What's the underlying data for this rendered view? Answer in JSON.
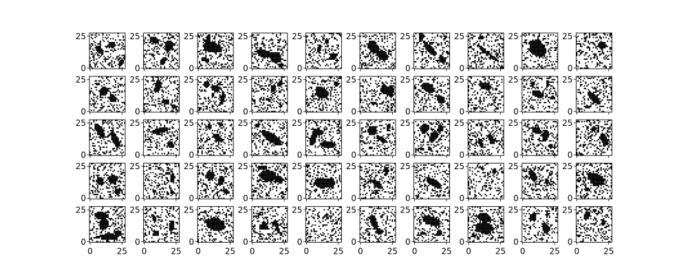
{
  "chart_data": {
    "type": "heatmap",
    "title": "",
    "xlabel": "",
    "ylabel": "",
    "layout": {
      "rows": 5,
      "cols": 10
    },
    "image_size": [
      28,
      28
    ],
    "colormap": [
      "#ffffff",
      "#000000"
    ],
    "xticks": [
      "0",
      "25"
    ],
    "yticks": [
      "0",
      "25"
    ],
    "panels": [
      {
        "blobs": [
          [
            0.28,
            0.47,
            0.16,
            0.09,
            0.8
          ],
          [
            0.63,
            0.33,
            0.11,
            0.1,
            0.1
          ],
          [
            0.88,
            0.86,
            0.06,
            0.12,
            0.6
          ]
        ],
        "seed": 11
      },
      {
        "blobs": [
          [
            0.3,
            0.2,
            0.15,
            0.1,
            0.2
          ],
          [
            0.7,
            0.35,
            0.12,
            0.18,
            0.3
          ],
          [
            0.55,
            0.78,
            0.08,
            0.13,
            0.6
          ]
        ],
        "seed": 12
      },
      {
        "blobs": [
          [
            0.43,
            0.41,
            0.3,
            0.16,
            0.2
          ],
          [
            0.22,
            0.75,
            0.12,
            0.06,
            0.1
          ],
          [
            0.3,
            0.17,
            0.07,
            0.14,
            0.2
          ]
        ],
        "seed": 13
      },
      {
        "blobs": [
          [
            0.32,
            0.57,
            0.22,
            0.12,
            0.5
          ],
          [
            0.66,
            0.68,
            0.2,
            0.16,
            0.7
          ],
          [
            0.82,
            0.9,
            0.1,
            0.06,
            0.2
          ]
        ],
        "seed": 14
      },
      {
        "blobs": [
          [
            0.38,
            0.44,
            0.06,
            0.14,
            0.3
          ],
          [
            0.77,
            0.64,
            0.11,
            0.1,
            0.8
          ],
          [
            0.58,
            0.22,
            0.05,
            0.07,
            0.3
          ]
        ],
        "seed": 15
      },
      {
        "blobs": [
          [
            0.38,
            0.4,
            0.16,
            0.22,
            -0.4
          ],
          [
            0.62,
            0.62,
            0.2,
            0.14,
            0.6
          ]
        ],
        "seed": 16
      },
      {
        "blobs": [
          [
            0.2,
            0.1,
            0.08,
            0.12,
            0.3
          ],
          [
            0.45,
            0.45,
            0.26,
            0.1,
            0.8
          ],
          [
            0.8,
            0.75,
            0.14,
            0.08,
            0.7
          ]
        ],
        "seed": 17
      },
      {
        "blobs": [
          [
            0.44,
            0.48,
            0.24,
            0.06,
            0.7
          ],
          [
            0.72,
            0.7,
            0.14,
            0.05,
            0.6
          ],
          [
            0.36,
            0.14,
            0.08,
            0.06,
            0.4
          ]
        ],
        "seed": 18
      },
      {
        "blobs": [
          [
            0.4,
            0.42,
            0.2,
            0.27,
            -0.3
          ],
          [
            0.56,
            0.5,
            0.14,
            0.18,
            0.2
          ]
        ],
        "seed": 19
      },
      {
        "blobs": [
          [
            0.72,
            0.35,
            0.13,
            0.1,
            0.2
          ],
          [
            0.32,
            0.42,
            0.03,
            0.03,
            0
          ],
          [
            0.45,
            0.52,
            0.03,
            0.03,
            0
          ]
        ],
        "seed": 20
      },
      {
        "blobs": [
          [
            0.4,
            0.42,
            0.12,
            0.15,
            0.3
          ],
          [
            0.65,
            0.62,
            0.14,
            0.1,
            0.7
          ],
          [
            0.25,
            0.22,
            0.06,
            0.05,
            0.3
          ]
        ],
        "seed": 21
      },
      {
        "blobs": [
          [
            0.4,
            0.28,
            0.1,
            0.2,
            0.4
          ],
          [
            0.62,
            0.72,
            0.12,
            0.07,
            0.2
          ],
          [
            0.85,
            0.85,
            0.08,
            0.06,
            0.2
          ]
        ],
        "seed": 22
      },
      {
        "blobs": [
          [
            0.25,
            0.23,
            0.09,
            0.1,
            0.2
          ],
          [
            0.5,
            0.33,
            0.14,
            0.1,
            0.4
          ],
          [
            0.7,
            0.6,
            0.07,
            0.2,
            0.2
          ]
        ],
        "seed": 23
      },
      {
        "blobs": [
          [
            0.6,
            0.34,
            0.08,
            0.12,
            0.4
          ],
          [
            0.8,
            0.2,
            0.05,
            0.1,
            0
          ],
          [
            0.45,
            0.65,
            0.07,
            0.05,
            0.3
          ]
        ],
        "seed": 24
      },
      {
        "blobs": [
          [
            0.45,
            0.45,
            0.22,
            0.15,
            0.7
          ],
          [
            0.85,
            0.2,
            0.07,
            0.08,
            0.2
          ]
        ],
        "seed": 25
      },
      {
        "blobs": [
          [
            0.72,
            0.38,
            0.16,
            0.14,
            0.5
          ],
          [
            0.88,
            0.42,
            0.08,
            0.2,
            0
          ],
          [
            0.4,
            0.75,
            0.1,
            0.05,
            0.2
          ]
        ],
        "seed": 26
      },
      {
        "blobs": [
          [
            0.4,
            0.32,
            0.22,
            0.13,
            0.6
          ],
          [
            0.75,
            0.65,
            0.14,
            0.1,
            0.7
          ]
        ],
        "seed": 27
      },
      {
        "blobs": [
          [
            0.5,
            0.28,
            0.2,
            0.1,
            0.3
          ],
          [
            0.2,
            0.9,
            0.06,
            0.06,
            0.2
          ]
        ],
        "seed": 28
      },
      {
        "blobs": [
          [
            0.45,
            0.5,
            0.18,
            0.1,
            0.5
          ],
          [
            0.3,
            0.2,
            0.06,
            0.08,
            0.2
          ],
          [
            0.72,
            0.22,
            0.05,
            0.07,
            0.2
          ],
          [
            0.85,
            0.6,
            0.06,
            0.07,
            0.2
          ]
        ],
        "seed": 29
      },
      {
        "blobs": [
          [
            0.5,
            0.6,
            0.26,
            0.1,
            0.8
          ],
          [
            0.3,
            0.85,
            0.08,
            0.05,
            0.2
          ]
        ],
        "seed": 30
      },
      {
        "blobs": [
          [
            0.28,
            0.3,
            0.1,
            0.26,
            -0.5
          ],
          [
            0.72,
            0.55,
            0.1,
            0.3,
            -0.4
          ]
        ],
        "seed": 31
      },
      {
        "blobs": [
          [
            0.45,
            0.3,
            0.26,
            0.08,
            -0.2
          ],
          [
            0.75,
            0.7,
            0.12,
            0.08,
            0.7
          ]
        ],
        "seed": 32
      },
      {
        "blobs": [
          [
            0.55,
            0.5,
            0.2,
            0.08,
            0.7
          ],
          [
            0.32,
            0.2,
            0.06,
            0.06,
            0.2
          ],
          [
            0.65,
            0.12,
            0.04,
            0.05,
            0
          ]
        ],
        "seed": 33
      },
      {
        "blobs": [
          [
            0.55,
            0.5,
            0.36,
            0.13,
            0.6
          ],
          [
            0.15,
            0.15,
            0.08,
            0.06,
            0.3
          ]
        ],
        "seed": 34
      },
      {
        "blobs": [
          [
            0.35,
            0.35,
            0.18,
            0.1,
            0.1
          ],
          [
            0.62,
            0.7,
            0.24,
            0.1,
            0.1
          ],
          [
            0.2,
            0.55,
            0.1,
            0.2,
            0.3
          ]
        ],
        "seed": 35
      },
      {
        "blobs": [
          [
            0.35,
            0.3,
            0.14,
            0.15,
            0.3
          ],
          [
            0.62,
            0.55,
            0.18,
            0.08,
            0.5
          ],
          [
            0.8,
            0.2,
            0.06,
            0.1,
            0.2
          ],
          [
            0.3,
            0.78,
            0.06,
            0.05,
            0
          ]
        ],
        "seed": 36
      },
      {
        "blobs": [
          [
            0.3,
            0.25,
            0.12,
            0.16,
            0.3
          ],
          [
            0.55,
            0.48,
            0.12,
            0.2,
            0.5
          ],
          [
            0.75,
            0.25,
            0.1,
            0.1,
            0.2
          ],
          [
            0.45,
            0.82,
            0.05,
            0.06,
            0
          ]
        ],
        "seed": 37
      },
      {
        "blobs": [
          [
            0.35,
            0.65,
            0.06,
            0.16,
            -0.4
          ],
          [
            0.65,
            0.55,
            0.08,
            0.18,
            -0.4
          ],
          [
            0.25,
            0.15,
            0.04,
            0.04,
            0
          ]
        ],
        "seed": 38
      },
      {
        "blobs": [
          [
            0.4,
            0.3,
            0.16,
            0.1,
            0.5
          ],
          [
            0.65,
            0.45,
            0.1,
            0.18,
            0.1
          ],
          [
            0.8,
            0.75,
            0.05,
            0.06,
            0
          ]
        ],
        "seed": 39
      },
      {
        "blobs": [
          [
            0.5,
            0.25,
            0.08,
            0.07,
            0
          ],
          [
            0.78,
            0.55,
            0.1,
            0.22,
            -0.3
          ],
          [
            0.12,
            0.95,
            0.05,
            0.04,
            0
          ]
        ],
        "seed": 40
      },
      {
        "blobs": [
          [
            0.3,
            0.5,
            0.14,
            0.1,
            0.7
          ],
          [
            0.65,
            0.45,
            0.16,
            0.13,
            0
          ],
          [
            0.8,
            0.8,
            0.08,
            0.1,
            0.3
          ]
        ],
        "seed": 41
      },
      {
        "blobs": [
          [
            0.3,
            0.8,
            0.06,
            0.05,
            0
          ],
          [
            0.8,
            0.4,
            0.05,
            0.18,
            0
          ],
          [
            0.8,
            0.82,
            0.06,
            0.06,
            0
          ],
          [
            0.18,
            0.15,
            0.04,
            0.04,
            0
          ]
        ],
        "seed": 42
      },
      {
        "blobs": [
          [
            0.35,
            0.35,
            0.14,
            0.14,
            0.2
          ],
          [
            0.65,
            0.5,
            0.1,
            0.16,
            0.4
          ],
          [
            0.8,
            0.8,
            0.1,
            0.07,
            0.3
          ]
        ],
        "seed": 43
      },
      {
        "blobs": [
          [
            0.45,
            0.35,
            0.24,
            0.18,
            0.1
          ],
          [
            0.75,
            0.45,
            0.14,
            0.12,
            0.2
          ],
          [
            0.3,
            0.12,
            0.16,
            0.06,
            0
          ]
        ],
        "seed": 44
      },
      {
        "blobs": [
          [
            0.45,
            0.55,
            0.24,
            0.16,
            0
          ],
          [
            0.7,
            0.55,
            0.13,
            0.16,
            0.2
          ]
        ],
        "seed": 45
      },
      {
        "blobs": [
          [
            0.5,
            0.6,
            0.2,
            0.09,
            0.7
          ],
          [
            0.75,
            0.2,
            0.06,
            0.09,
            0
          ],
          [
            0.3,
            0.5,
            0.06,
            0.06,
            0
          ]
        ],
        "seed": 46
      },
      {
        "blobs": [
          [
            0.55,
            0.55,
            0.28,
            0.11,
            0.6
          ],
          [
            0.1,
            0.92,
            0.06,
            0.05,
            0
          ]
        ],
        "seed": 47
      },
      {
        "blobs": [
          [
            0.4,
            0.15,
            0.04,
            0.05,
            0
          ],
          [
            0.75,
            0.22,
            0.06,
            0.08,
            0
          ],
          [
            0.5,
            0.55,
            0.03,
            0.03,
            0
          ]
        ],
        "seed": 48
      },
      {
        "blobs": [
          [
            0.3,
            0.35,
            0.1,
            0.2,
            -0.5
          ],
          [
            0.68,
            0.5,
            0.06,
            0.09,
            0
          ]
        ],
        "seed": 49
      },
      {
        "blobs": [
          [
            0.55,
            0.45,
            0.28,
            0.18,
            0.6
          ],
          [
            0.3,
            0.72,
            0.08,
            0.07,
            0.2
          ]
        ],
        "seed": 50
      },
      {
        "blobs": [
          [
            0.35,
            0.25,
            0.2,
            0.12,
            0.2
          ],
          [
            0.4,
            0.5,
            0.14,
            0.18,
            0.3
          ],
          [
            0.55,
            0.85,
            0.3,
            0.1,
            0
          ],
          [
            0.8,
            0.75,
            0.12,
            0.1,
            0.3
          ]
        ],
        "seed": 51
      },
      {
        "blobs": [
          [
            0.3,
            0.35,
            0.06,
            0.12,
            -0.3
          ],
          [
            0.35,
            0.75,
            0.1,
            0.09,
            0.3
          ],
          [
            0.78,
            0.55,
            0.08,
            0.18,
            0.2
          ]
        ],
        "seed": 52
      },
      {
        "blobs": [
          [
            0.5,
            0.5,
            0.32,
            0.2,
            0.3
          ],
          [
            0.2,
            0.15,
            0.05,
            0.04,
            0
          ]
        ],
        "seed": 53
      },
      {
        "blobs": [
          [
            0.35,
            0.55,
            0.12,
            0.12,
            0.5
          ],
          [
            0.7,
            0.55,
            0.06,
            0.2,
            -0.3
          ],
          [
            0.2,
            0.22,
            0.04,
            0.05,
            0
          ]
        ],
        "seed": 54
      },
      {
        "blobs": [
          [
            0.36,
            0.28,
            0.03,
            0.04,
            0
          ],
          [
            0.1,
            0.84,
            0.02,
            0.02,
            0
          ]
        ],
        "seed": 55
      },
      {
        "blobs": [
          [
            0.4,
            0.45,
            0.1,
            0.26,
            -0.4
          ],
          [
            0.55,
            0.7,
            0.12,
            0.1,
            0.3
          ]
        ],
        "seed": 56
      },
      {
        "blobs": [
          [
            0.5,
            0.4,
            0.3,
            0.14,
            0.4
          ],
          [
            0.7,
            0.75,
            0.08,
            0.1,
            0.3
          ],
          [
            0.25,
            0.75,
            0.1,
            0.05,
            0.3
          ]
        ],
        "seed": 57
      },
      {
        "blobs": [
          [
            0.45,
            0.3,
            0.2,
            0.14,
            0.3
          ],
          [
            0.45,
            0.6,
            0.28,
            0.18,
            0.1
          ],
          [
            0.15,
            0.8,
            0.06,
            0.06,
            0
          ]
        ],
        "seed": 58
      },
      {
        "blobs": [
          [
            0.3,
            0.3,
            0.1,
            0.12,
            0.3
          ],
          [
            0.65,
            0.6,
            0.1,
            0.16,
            -0.2
          ],
          [
            0.7,
            0.22,
            0.05,
            0.06,
            0
          ]
        ],
        "seed": 59
      },
      {
        "blobs": [
          [
            0.3,
            0.25,
            0.1,
            0.14,
            0.3
          ],
          [
            0.75,
            0.45,
            0.06,
            0.1,
            0
          ],
          [
            0.5,
            0.1,
            0.05,
            0.05,
            0
          ]
        ],
        "seed": 60
      }
    ]
  }
}
